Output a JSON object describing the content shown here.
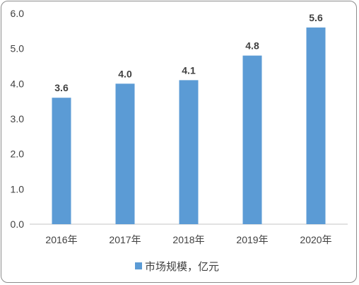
{
  "chart_data": {
    "type": "bar",
    "categories": [
      "2016年",
      "2017年",
      "2018年",
      "2019年",
      "2020年"
    ],
    "series": [
      {
        "name": "市场规模，亿元",
        "values": [
          3.6,
          4.0,
          4.1,
          4.8,
          5.6
        ]
      }
    ],
    "data_labels": [
      "3.6",
      "4.0",
      "4.1",
      "4.8",
      "5.6"
    ],
    "y_ticks": [
      "0.0",
      "1.0",
      "2.0",
      "3.0",
      "4.0",
      "5.0",
      "6.0"
    ],
    "ylim": [
      0,
      6
    ],
    "grid": false,
    "legend_position": "bottom",
    "colors": {
      "bar": "#5b9bd5",
      "axis": "#d9d9d9",
      "text": "#404040"
    }
  }
}
